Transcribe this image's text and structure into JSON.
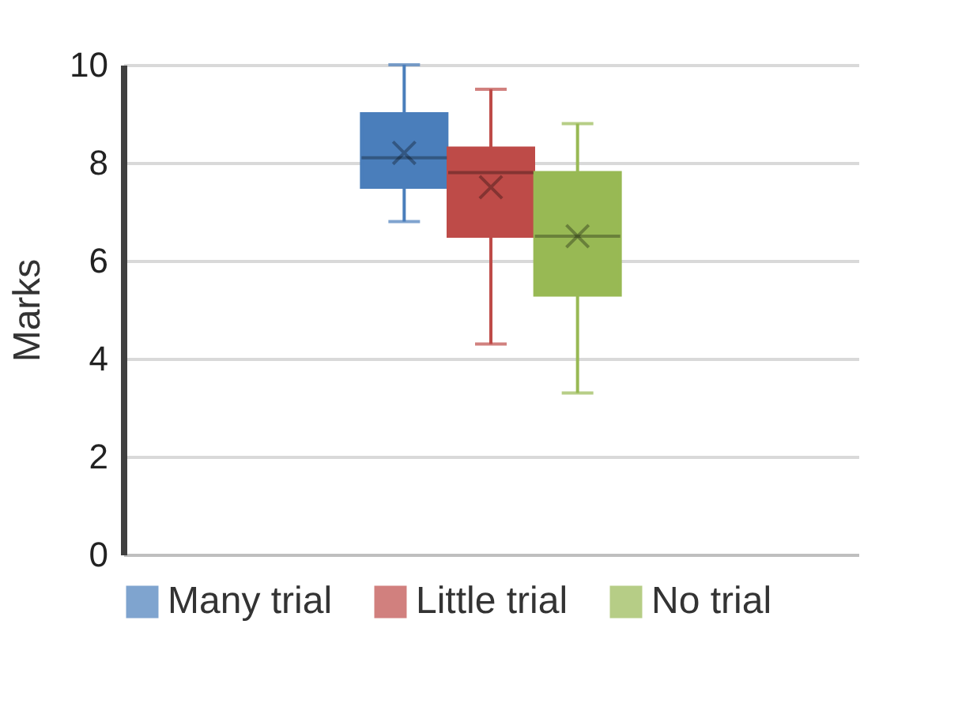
{
  "chart_data": {
    "type": "box",
    "ylabel": "Marks",
    "categories": [
      null
    ],
    "ylim": [
      0,
      10
    ],
    "yticks": [
      0,
      2,
      4,
      6,
      8,
      10
    ],
    "grid": "y",
    "legend": "bottom",
    "series": [
      {
        "name": "Many trial",
        "color": "#4a7ebb",
        "boxes": [
          {
            "low": 6.8,
            "q1": 7.5,
            "median": 8.1,
            "q3": 9.0,
            "high": 10,
            "mean": 8.2
          }
        ]
      },
      {
        "name": "Little trial",
        "color": "#be4b48",
        "boxes": [
          {
            "low": 4.3,
            "q1": 6.5,
            "median": 7.8,
            "q3": 8.3,
            "high": 9.5,
            "mean": 7.5
          }
        ]
      },
      {
        "name": "No trial",
        "color": "#98b954",
        "boxes": [
          {
            "low": 3.3,
            "q1": 5.3,
            "median": 6.5,
            "q3": 7.8,
            "high": 8.8,
            "mean": 6.5
          }
        ]
      }
    ]
  }
}
